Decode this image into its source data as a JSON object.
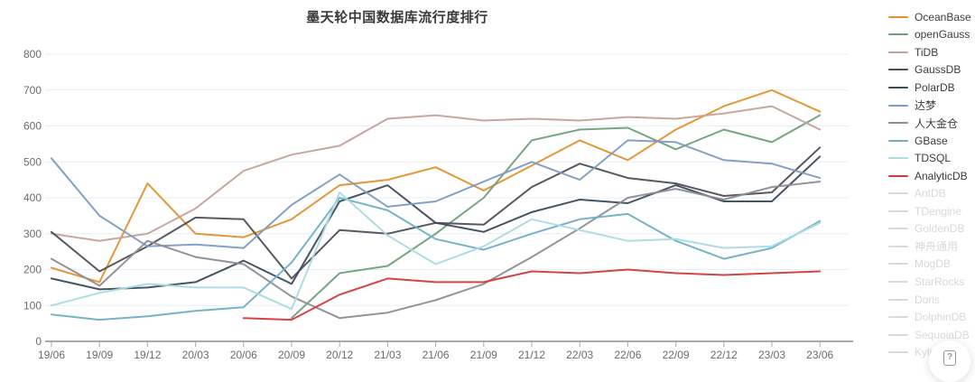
{
  "page": {
    "background": "#ffffff"
  },
  "chart": {
    "title": "墨天轮中国数据库流行度排行",
    "grid_color": "#e9eef6",
    "axis_color": "#a9a9ad",
    "tick_label_color": "#6b6b70"
  },
  "chart_data": {
    "type": "line",
    "title": "墨天轮中国数据库流行度排行",
    "x": [
      "19/06",
      "19/09",
      "19/12",
      "20/03",
      "20/06",
      "20/09",
      "20/12",
      "21/03",
      "21/06",
      "21/09",
      "21/12",
      "22/03",
      "22/06",
      "22/09",
      "22/12",
      "23/03",
      "23/06"
    ],
    "xlabel": "",
    "ylabel": "",
    "ylim": [
      0,
      800
    ],
    "y_ticks": [
      0,
      100,
      200,
      300,
      400,
      500,
      600,
      700,
      800
    ],
    "grid": true,
    "legend_position": "right",
    "series": [
      {
        "name": "OceanBase",
        "color": "#e0922d",
        "values": [
          205,
          165,
          440,
          300,
          290,
          340,
          435,
          450,
          485,
          420,
          490,
          560,
          505,
          590,
          655,
          700,
          640
        ]
      },
      {
        "name": "openGauss",
        "color": "#6fa07a",
        "values": [
          null,
          null,
          null,
          null,
          null,
          65,
          190,
          210,
          300,
          400,
          560,
          590,
          595,
          535,
          590,
          555,
          630
        ]
      },
      {
        "name": "TiDB",
        "color": "#c4a29b",
        "values": [
          300,
          280,
          300,
          370,
          475,
          520,
          545,
          620,
          630,
          615,
          620,
          615,
          625,
          620,
          635,
          655,
          590
        ]
      },
      {
        "name": "GaussDB",
        "color": "#4f4f58",
        "values": [
          305,
          195,
          265,
          345,
          340,
          175,
          310,
          300,
          330,
          325,
          430,
          495,
          455,
          440,
          405,
          415,
          540
        ]
      },
      {
        "name": "PolarDB",
        "color": "#3c4b5e",
        "values": [
          175,
          145,
          150,
          165,
          225,
          160,
          390,
          435,
          330,
          305,
          360,
          395,
          385,
          435,
          390,
          390,
          515
        ]
      },
      {
        "name": "达梦",
        "color": "#7e9bc2",
        "values": [
          510,
          350,
          265,
          270,
          260,
          380,
          465,
          375,
          390,
          445,
          500,
          450,
          560,
          555,
          505,
          495,
          455
        ]
      },
      {
        "name": "人大金仓",
        "color": "#8d8d93",
        "values": [
          230,
          155,
          280,
          235,
          215,
          125,
          65,
          80,
          115,
          160,
          235,
          315,
          400,
          425,
          395,
          430,
          445
        ]
      },
      {
        "name": "GBase",
        "color": "#6fafc5",
        "values": [
          75,
          60,
          70,
          85,
          95,
          220,
          400,
          365,
          285,
          255,
          300,
          340,
          355,
          280,
          230,
          260,
          335
        ]
      },
      {
        "name": "TDSQL",
        "color": "#a9dbe0",
        "values": [
          100,
          135,
          160,
          150,
          150,
          90,
          415,
          295,
          215,
          265,
          340,
          310,
          280,
          285,
          260,
          265,
          330
        ]
      },
      {
        "name": "AnalyticDB",
        "color": "#d23a3c",
        "values": [
          null,
          null,
          null,
          null,
          65,
          60,
          130,
          175,
          165,
          165,
          195,
          190,
          200,
          190,
          185,
          190,
          195
        ]
      }
    ]
  },
  "legend": {
    "items": [
      {
        "label": "OceanBase",
        "color": "#e0922d",
        "active": true
      },
      {
        "label": "openGauss",
        "color": "#6fa07a",
        "active": true
      },
      {
        "label": "TiDB",
        "color": "#c4a29b",
        "active": true
      },
      {
        "label": "GaussDB",
        "color": "#4f4f58",
        "active": true
      },
      {
        "label": "PolarDB",
        "color": "#3c4b5e",
        "active": true
      },
      {
        "label": "达梦",
        "color": "#7e9bc2",
        "active": true
      },
      {
        "label": "人大金仓",
        "color": "#8d8d93",
        "active": true
      },
      {
        "label": "GBase",
        "color": "#6fafc5",
        "active": true
      },
      {
        "label": "TDSQL",
        "color": "#a9dbe0",
        "active": true
      },
      {
        "label": "AnalyticDB",
        "color": "#d23a3c",
        "active": true
      },
      {
        "label": "AntDB",
        "color": "#d9d9df",
        "active": false
      },
      {
        "label": "TDengine",
        "color": "#d9d9df",
        "active": false
      },
      {
        "label": "GoldenDB",
        "color": "#d9d9df",
        "active": false
      },
      {
        "label": "神舟通用",
        "color": "#d9d9df",
        "active": false
      },
      {
        "label": "MogDB",
        "color": "#d9d9df",
        "active": false
      },
      {
        "label": "StarRocks",
        "color": "#d9d9df",
        "active": false
      },
      {
        "label": "Doris",
        "color": "#d9d9df",
        "active": false
      },
      {
        "label": "DolphinDB",
        "color": "#d9d9df",
        "active": false
      },
      {
        "label": "SequoiaDB",
        "color": "#d9d9df",
        "active": false
      },
      {
        "label": "Kyligence",
        "color": "#d9d9df",
        "active": false
      }
    ]
  },
  "fab": {
    "icon": "broken-image-question",
    "glyph": "?"
  }
}
